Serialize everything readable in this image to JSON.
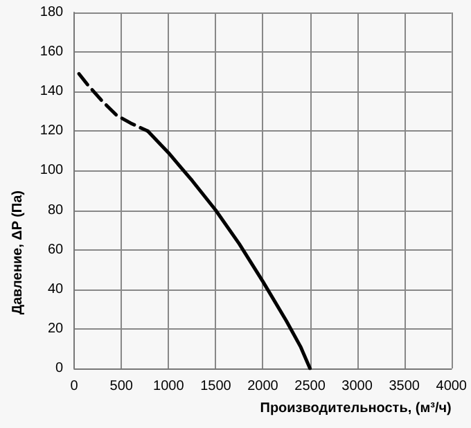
{
  "chart_data": {
    "type": "line",
    "xlabel": "Производительность, (м³/ч)",
    "ylabel": "Давление, ΔP (Па)",
    "xlim": [
      0,
      4000
    ],
    "xticks": [
      0,
      500,
      1000,
      1500,
      2000,
      2500,
      3000,
      3500,
      4000
    ],
    "ylim": [
      0,
      180
    ],
    "yticks": [
      0,
      20,
      40,
      60,
      80,
      100,
      120,
      140,
      160,
      180
    ],
    "grid": true,
    "marker": "none",
    "series": [
      {
        "color": "#000000",
        "line_style": "dashed",
        "x": [
          50,
          150,
          300,
          450,
          600,
          780
        ],
        "values": [
          149,
          143,
          135,
          128,
          124,
          120
        ]
      },
      {
        "color": "#000000",
        "line_style": "solid",
        "x": [
          780,
          1000,
          1250,
          1500,
          1750,
          2000,
          2250,
          2400,
          2500
        ],
        "values": [
          120,
          109,
          95,
          80,
          63,
          44,
          24,
          11,
          0
        ]
      }
    ]
  }
}
